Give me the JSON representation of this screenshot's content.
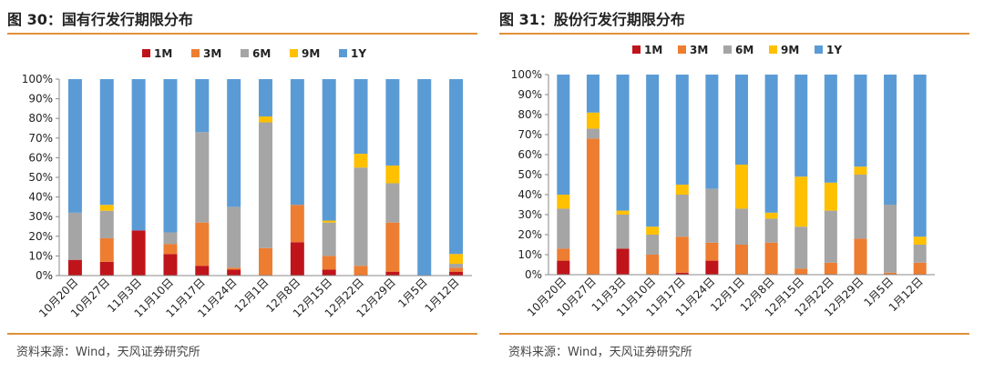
{
  "colors": {
    "1M": "#c0141b",
    "3M": "#ed7d31",
    "6M": "#a5a5a5",
    "9M": "#ffc000",
    "1Y": "#5b9bd5",
    "accent": "#e0913a"
  },
  "left": {
    "title": "图 30：国有行发行期限分布",
    "source": "资料来源：Wind，天风证券研究所"
  },
  "right": {
    "title": "图 31：股份行发行期限分布",
    "source": "资料来源：Wind，天风证券研究所"
  },
  "chart_data": [
    {
      "type": "bar",
      "stacked": true,
      "legend_position": "top",
      "ylim": [
        0,
        100
      ],
      "yticks": [
        "0%",
        "10%",
        "20%",
        "30%",
        "40%",
        "50%",
        "60%",
        "70%",
        "80%",
        "90%",
        "100%"
      ],
      "categories": [
        "10月20日",
        "10月27日",
        "11月3日",
        "11月10日",
        "11月17日",
        "11月24日",
        "12月1日",
        "12月8日",
        "12月15日",
        "12月22日",
        "12月29日",
        "1月5日",
        "1月12日"
      ],
      "series": [
        {
          "name": "1M",
          "values": [
            8,
            7,
            23,
            11,
            5,
            3,
            0,
            17,
            3,
            0,
            2,
            0,
            2
          ]
        },
        {
          "name": "3M",
          "values": [
            0,
            12,
            0,
            5,
            22,
            1,
            14,
            19,
            7,
            5,
            25,
            0,
            2
          ]
        },
        {
          "name": "6M",
          "values": [
            24,
            14,
            0,
            6,
            46,
            31,
            64,
            0,
            17,
            50,
            20,
            0,
            2
          ]
        },
        {
          "name": "9M",
          "values": [
            0,
            3,
            0,
            0,
            0,
            0,
            3,
            0,
            1,
            7,
            9,
            0,
            5
          ]
        },
        {
          "name": "1Y",
          "values": [
            68,
            64,
            77,
            78,
            27,
            65,
            19,
            64,
            72,
            38,
            44,
            100,
            89
          ]
        }
      ]
    },
    {
      "type": "bar",
      "stacked": true,
      "legend_position": "top",
      "ylim": [
        0,
        100
      ],
      "yticks": [
        "0%",
        "10%",
        "20%",
        "30%",
        "40%",
        "50%",
        "60%",
        "70%",
        "80%",
        "90%",
        "100%"
      ],
      "categories": [
        "10月20日",
        "10月27日",
        "11月3日",
        "11月10日",
        "11月17日",
        "11月24日",
        "12月1日",
        "12月8日",
        "12月15日",
        "12月22日",
        "12月29日",
        "1月5日",
        "1月12日"
      ],
      "series": [
        {
          "name": "1M",
          "values": [
            7,
            0,
            13,
            0,
            1,
            7,
            0,
            0,
            0,
            0,
            0,
            0,
            0
          ]
        },
        {
          "name": "3M",
          "values": [
            6,
            68,
            0,
            10,
            18,
            9,
            15,
            16,
            3,
            6,
            18,
            1,
            6
          ]
        },
        {
          "name": "6M",
          "values": [
            20,
            5,
            17,
            10,
            21,
            27,
            18,
            12,
            21,
            26,
            32,
            34,
            9
          ]
        },
        {
          "name": "9M",
          "values": [
            7,
            8,
            2,
            4,
            5,
            0,
            22,
            3,
            25,
            14,
            4,
            0,
            4
          ]
        },
        {
          "name": "1Y",
          "values": [
            60,
            19,
            68,
            76,
            55,
            57,
            45,
            69,
            51,
            54,
            46,
            65,
            81
          ]
        }
      ]
    }
  ]
}
